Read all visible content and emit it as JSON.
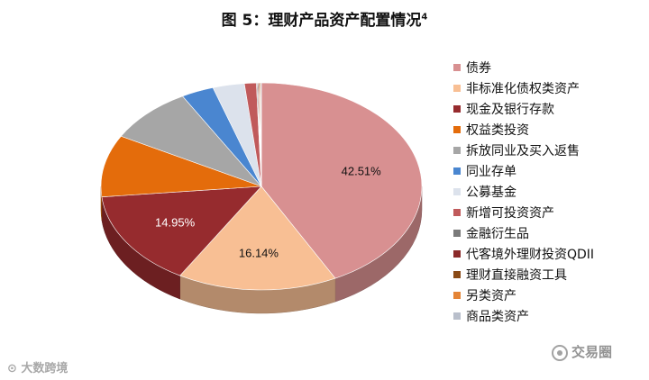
{
  "title": "图 5：理财产品资产配置情况",
  "title_sup": "4",
  "watermarks": {
    "left": "大数跨境",
    "right": "交易圈"
  },
  "chart_data": {
    "type": "pie",
    "style": "3d",
    "start_angle": "top, clockwise",
    "legend_position": "right",
    "categories": [
      "债券",
      "非标准化债权类资产",
      "现金及银行存款",
      "权益类投资",
      "拆放同业及买入返售",
      "同业存单",
      "公募基金",
      "新增可投资资产",
      "金融衍生品",
      "代客境外理财投资QDII",
      "理财直接融资工具",
      "另类资产",
      "商品类资产"
    ],
    "values": [
      42.51,
      16.14,
      14.95,
      9.7,
      8.8,
      3.3,
      3.2,
      1.2,
      0.1,
      0.1,
      0.1,
      0.1,
      0.1
    ],
    "data_labels": [
      "42.51%",
      "16.14%",
      "14.95%",
      "",
      "",
      "",
      "",
      "",
      "",
      "",
      "",
      "",
      ""
    ],
    "colors": [
      "#d89091",
      "#f8bf94",
      "#962b2e",
      "#e46c0b",
      "#a6a6a6",
      "#4a86d0",
      "#dce2ec",
      "#c05a5b",
      "#7a7a7a",
      "#8b2a2a",
      "#8a4a16",
      "#e48436",
      "#b9bfcb"
    ]
  }
}
